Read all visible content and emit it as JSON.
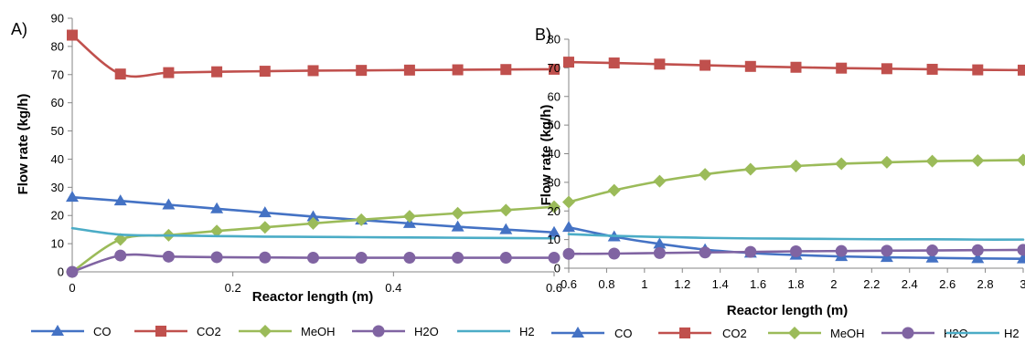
{
  "series_styles": [
    {
      "name": "CO",
      "color": "#4472C4",
      "marker": "triangle"
    },
    {
      "name": "CO2",
      "color": "#C0504D",
      "marker": "square"
    },
    {
      "name": "MeOH",
      "color": "#9BBB59",
      "marker": "diamond"
    },
    {
      "name": "H2O",
      "color": "#8064A2",
      "marker": "circle"
    },
    {
      "name": "H2",
      "color": "#4BACC6",
      "marker": "none"
    }
  ],
  "chart_data": [
    {
      "type": "line",
      "panel_label": "A)",
      "title": "",
      "xlabel": "Reactor length (m)",
      "ylabel": "Flow rate (kg/h)",
      "xlim": [
        0,
        0.6
      ],
      "ylim": [
        0,
        90
      ],
      "x_ticks": [
        0,
        0.2,
        0.4,
        0.6
      ],
      "x_tick_labels": [
        "0",
        "0.2",
        "0.4",
        "0.6"
      ],
      "y_ticks": [
        0,
        10,
        20,
        30,
        40,
        50,
        60,
        70,
        80,
        90
      ],
      "y_tick_labels": [
        "0",
        "10",
        "20",
        "30",
        "40",
        "50",
        "60",
        "70",
        "80",
        "90"
      ],
      "x": [
        0,
        0.06,
        0.12,
        0.18,
        0.24,
        0.3,
        0.36,
        0.42,
        0.48,
        0.54,
        0.6
      ],
      "series": [
        {
          "name": "CO",
          "values": [
            26.5,
            25.2,
            23.8,
            22.4,
            21.0,
            19.6,
            18.4,
            17.2,
            16.0,
            15.0,
            14.0
          ]
        },
        {
          "name": "CO2",
          "values": [
            84.0,
            70.2,
            70.7,
            71.0,
            71.2,
            71.4,
            71.5,
            71.6,
            71.7,
            71.8,
            71.9
          ]
        },
        {
          "name": "MeOH",
          "values": [
            0,
            11.5,
            13.0,
            14.5,
            15.8,
            17.2,
            18.5,
            19.7,
            20.8,
            21.9,
            23.1
          ]
        },
        {
          "name": "H2O",
          "values": [
            0,
            5.8,
            5.4,
            5.2,
            5.1,
            5.0,
            5.0,
            5.0,
            5.0,
            5.0,
            5.0
          ]
        },
        {
          "name": "H2",
          "values": [
            15.5,
            13.2,
            12.9,
            12.7,
            12.5,
            12.4,
            12.3,
            12.2,
            12.1,
            12.0,
            11.9
          ]
        }
      ],
      "legend": {
        "position": "bottom",
        "entries": [
          "CO",
          "CO2",
          "MeOH",
          "H2O",
          "H2"
        ]
      },
      "grid": false
    },
    {
      "type": "line",
      "panel_label": "B)",
      "title": "",
      "xlabel": "Reactor length (m)",
      "ylabel": "Flow rate (kg/h)",
      "xlim": [
        0.6,
        3
      ],
      "ylim": [
        0,
        80
      ],
      "x_ticks": [
        0.6,
        0.8,
        1,
        1.2,
        1.4,
        1.6,
        1.8,
        2,
        2.2,
        2.4,
        2.6,
        2.8,
        3
      ],
      "x_tick_labels": [
        "0.6",
        "0.8",
        "1",
        "1.2",
        "1.4",
        "1.6",
        "1.8",
        "2",
        "2.2",
        "2.4",
        "2.6",
        "2.8",
        "3"
      ],
      "y_ticks": [
        0,
        10,
        20,
        30,
        40,
        50,
        60,
        70,
        80
      ],
      "y_tick_labels": [
        "0",
        "10",
        "20",
        "30",
        "40",
        "50",
        "60",
        "70",
        "80"
      ],
      "x": [
        0.6,
        0.84,
        1.08,
        1.32,
        1.56,
        1.8,
        2.04,
        2.28,
        2.52,
        2.76,
        3.0
      ],
      "series": [
        {
          "name": "CO",
          "values": [
            14.3,
            11.0,
            8.5,
            6.5,
            5.3,
            4.6,
            4.1,
            3.8,
            3.6,
            3.4,
            3.3
          ]
        },
        {
          "name": "CO2",
          "values": [
            72.0,
            71.7,
            71.3,
            70.9,
            70.5,
            70.2,
            69.9,
            69.7,
            69.5,
            69.3,
            69.2
          ]
        },
        {
          "name": "MeOH",
          "values": [
            23.1,
            27.2,
            30.4,
            32.8,
            34.6,
            35.7,
            36.5,
            37.0,
            37.4,
            37.6,
            37.8
          ]
        },
        {
          "name": "H2O",
          "values": [
            5.0,
            5.1,
            5.3,
            5.5,
            5.7,
            5.9,
            6.0,
            6.1,
            6.2,
            6.3,
            6.4
          ]
        },
        {
          "name": "H2",
          "values": [
            11.9,
            11.3,
            10.9,
            10.6,
            10.4,
            10.3,
            10.2,
            10.1,
            10.1,
            10.0,
            10.0
          ]
        }
      ],
      "legend": {
        "position": "bottom",
        "entries": [
          "CO",
          "CO2",
          "MeOH",
          "H2O",
          "H2"
        ]
      },
      "grid": false
    }
  ]
}
